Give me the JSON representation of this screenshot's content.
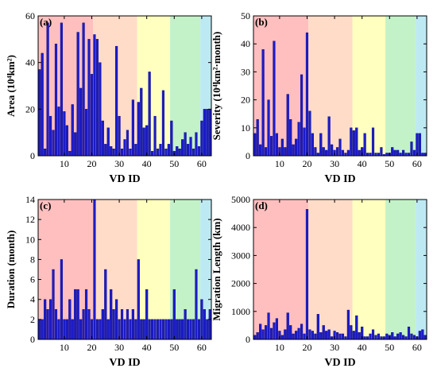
{
  "colors": {
    "bar": "#1c1cc8",
    "bar_edge": "#00008a",
    "bands": [
      "#ffbfbf",
      "#ffdcc8",
      "#ffffbf",
      "#c3f2c8",
      "#bde9f2"
    ]
  },
  "bands_x": [
    [
      0.5,
      20.5
    ],
    [
      20.5,
      36.5
    ],
    [
      36.5,
      48.5
    ],
    [
      48.5,
      59.5
    ],
    [
      59.5,
      63.5
    ]
  ],
  "chart_data": [
    {
      "type": "bar",
      "panel_label": "(a)",
      "xlabel": "VD ID",
      "ylabel": "Area (10⁴km²)",
      "xlim": [
        0.5,
        63.5
      ],
      "ylim": [
        0,
        60
      ],
      "xticks": [
        10,
        20,
        30,
        40,
        50,
        60
      ],
      "yticks": [
        0,
        20,
        40,
        60
      ],
      "x": [
        1,
        2,
        3,
        4,
        5,
        6,
        7,
        8,
        9,
        10,
        11,
        12,
        13,
        14,
        15,
        16,
        17,
        18,
        19,
        20,
        21,
        22,
        23,
        24,
        25,
        26,
        27,
        28,
        29,
        30,
        31,
        32,
        33,
        34,
        35,
        36,
        37,
        38,
        39,
        40,
        41,
        42,
        43,
        44,
        45,
        46,
        47,
        48,
        49,
        50,
        51,
        52,
        53,
        54,
        55,
        56,
        57,
        58,
        59,
        60,
        61,
        62,
        63
      ],
      "values": [
        37,
        44,
        3,
        57,
        17,
        11,
        48,
        21,
        57,
        19,
        13,
        2,
        22,
        10,
        53,
        29,
        57,
        20,
        50,
        35,
        52,
        50,
        40,
        15,
        5,
        12,
        4,
        3,
        47,
        17,
        3,
        7,
        11,
        3,
        24,
        5,
        23,
        29,
        12,
        13,
        36,
        2,
        17,
        3,
        5,
        28,
        3,
        5,
        15,
        2,
        4,
        3,
        7,
        10,
        5,
        8,
        3,
        10,
        4,
        15,
        20,
        20,
        20
      ]
    },
    {
      "type": "bar",
      "panel_label": "(b)",
      "xlabel": "VD ID",
      "ylabel": "Severity (10⁴km²·month)",
      "xlim": [
        0.5,
        63.5
      ],
      "ylim": [
        0,
        50
      ],
      "xticks": [
        10,
        20,
        30,
        40,
        50,
        60
      ],
      "yticks": [
        0,
        10,
        20,
        30,
        40,
        50
      ],
      "x": [
        1,
        2,
        3,
        4,
        5,
        6,
        7,
        8,
        9,
        10,
        11,
        12,
        13,
        14,
        15,
        16,
        17,
        18,
        19,
        20,
        21,
        22,
        23,
        24,
        25,
        26,
        27,
        28,
        29,
        30,
        31,
        32,
        33,
        34,
        35,
        36,
        37,
        38,
        39,
        40,
        41,
        42,
        43,
        44,
        45,
        46,
        47,
        48,
        49,
        50,
        51,
        52,
        53,
        54,
        55,
        56,
        57,
        58,
        59,
        60,
        61,
        62,
        63
      ],
      "values": [
        8,
        13,
        4,
        38,
        3,
        20,
        7,
        41,
        8,
        3,
        6,
        3,
        22,
        13,
        4,
        6,
        12,
        29,
        10,
        44,
        16,
        8,
        3,
        1,
        8,
        3,
        2,
        14,
        4,
        2,
        3,
        6,
        2,
        1,
        2,
        10,
        9,
        10,
        2,
        3,
        8,
        1,
        1,
        10,
        1,
        1,
        3,
        0.5,
        1,
        1,
        3,
        2,
        2,
        1,
        2,
        1,
        1,
        5,
        2,
        8,
        8,
        1,
        1
      ]
    },
    {
      "type": "bar",
      "panel_label": "(c)",
      "xlabel": "VD ID",
      "ylabel": "Duration (month)",
      "xlim": [
        0.5,
        63.5
      ],
      "ylim": [
        0,
        14
      ],
      "xticks": [
        10,
        20,
        30,
        40,
        50,
        60
      ],
      "yticks": [
        0,
        2,
        4,
        6,
        8,
        10,
        12,
        14
      ],
      "x": [
        1,
        2,
        3,
        4,
        5,
        6,
        7,
        8,
        9,
        10,
        11,
        12,
        13,
        14,
        15,
        16,
        17,
        18,
        19,
        20,
        21,
        22,
        23,
        24,
        25,
        26,
        27,
        28,
        29,
        30,
        31,
        32,
        33,
        34,
        35,
        36,
        37,
        38,
        39,
        40,
        41,
        42,
        43,
        44,
        45,
        46,
        47,
        48,
        49,
        50,
        51,
        52,
        53,
        54,
        55,
        56,
        57,
        58,
        59,
        60,
        61,
        62,
        63
      ],
      "values": [
        2,
        2,
        4,
        3,
        4,
        7,
        3,
        2,
        8,
        2,
        2,
        4,
        2,
        5,
        5,
        2,
        3,
        5,
        3,
        2,
        14,
        2,
        2,
        3,
        7,
        2,
        5,
        3,
        4,
        2,
        3,
        2,
        3,
        2,
        3,
        2,
        8,
        2,
        2,
        5,
        2,
        2,
        2,
        2,
        2,
        2,
        2,
        2,
        2,
        5,
        2,
        2,
        2,
        3,
        2,
        2,
        2,
        7,
        2,
        4,
        3,
        2,
        3
      ]
    },
    {
      "type": "bar",
      "panel_label": "(d)",
      "xlabel": "VD ID",
      "ylabel": "Migration Length (km)",
      "xlim": [
        0.5,
        63.5
      ],
      "ylim": [
        0,
        5000
      ],
      "xticks": [
        10,
        20,
        30,
        40,
        50,
        60
      ],
      "yticks": [
        0,
        1000,
        2000,
        3000,
        4000,
        5000
      ],
      "x": [
        1,
        2,
        3,
        4,
        5,
        6,
        7,
        8,
        9,
        10,
        11,
        12,
        13,
        14,
        15,
        16,
        17,
        18,
        19,
        20,
        21,
        22,
        23,
        24,
        25,
        26,
        27,
        28,
        29,
        30,
        31,
        32,
        33,
        34,
        35,
        36,
        37,
        38,
        39,
        40,
        41,
        42,
        43,
        44,
        45,
        46,
        47,
        48,
        49,
        50,
        51,
        52,
        53,
        54,
        55,
        56,
        57,
        58,
        59,
        60,
        61,
        62,
        63
      ],
      "values": [
        150,
        250,
        550,
        350,
        500,
        950,
        400,
        600,
        750,
        300,
        150,
        350,
        950,
        500,
        200,
        300,
        400,
        550,
        200,
        4650,
        350,
        300,
        200,
        900,
        250,
        500,
        300,
        350,
        100,
        300,
        250,
        200,
        200,
        100,
        1050,
        500,
        300,
        850,
        250,
        450,
        100,
        100,
        200,
        350,
        150,
        200,
        100,
        100,
        200,
        150,
        250,
        100,
        200,
        250,
        150,
        100,
        450,
        200,
        150,
        100,
        300,
        350,
        150
      ]
    }
  ]
}
